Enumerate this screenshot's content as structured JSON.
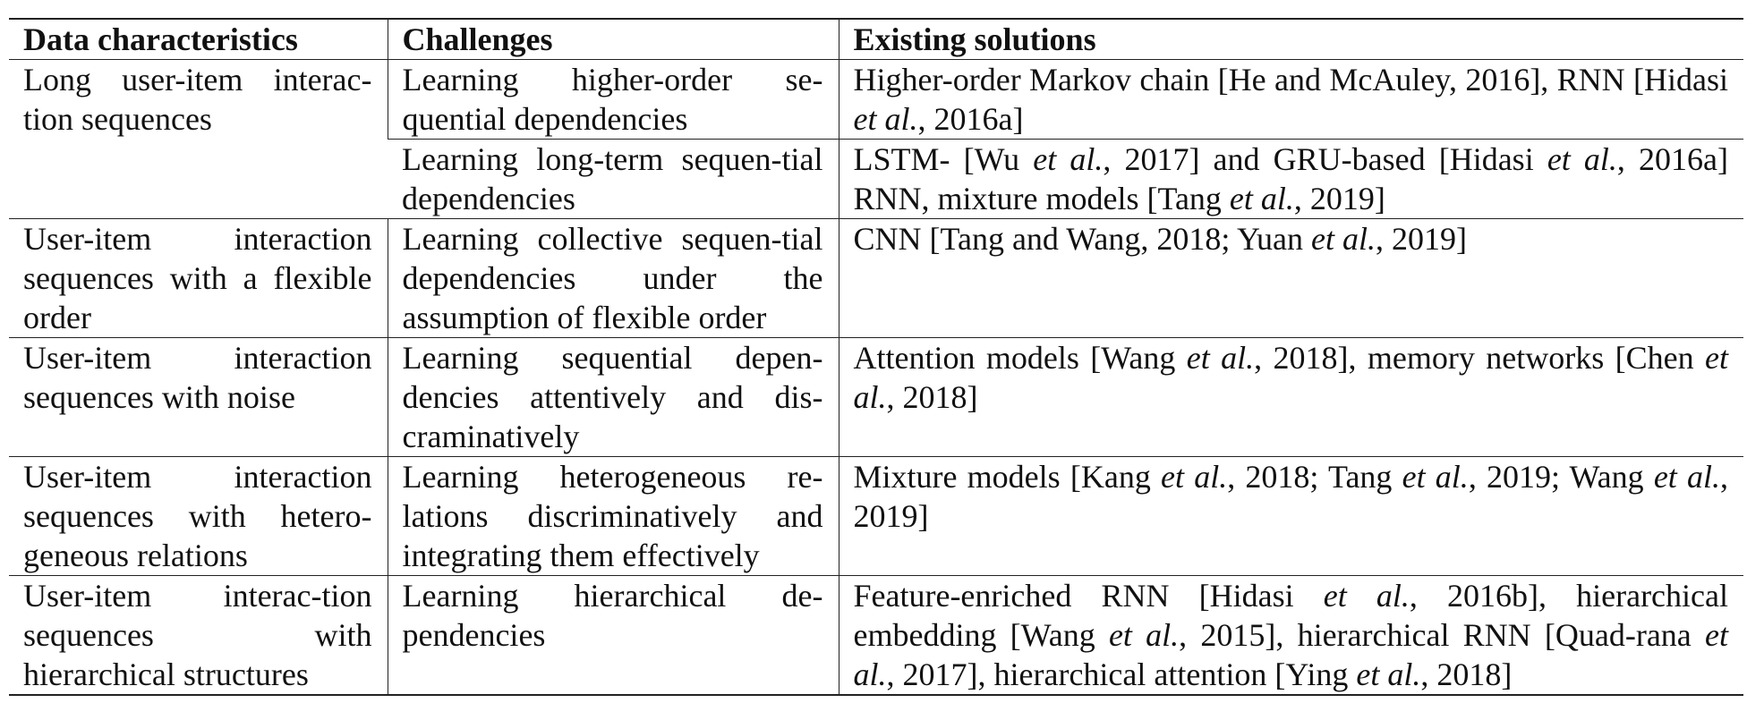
{
  "headers": {
    "col1": "Data characteristics",
    "col2": "Challenges",
    "col3": "Existing solutions"
  },
  "rows": [
    {
      "characteristic": "Long user-item interac-tion sequences",
      "challenges": [
        {
          "challenge": "Learning higher-order se-quential dependencies",
          "solutions": "Higher-order Markov chain [He and McAuley, 2016], RNN [Hidasi et al., 2016a]"
        },
        {
          "challenge": "Learning long-term sequen-tial dependencies",
          "solutions": "LSTM- [Wu et al., 2017] and GRU-based [Hidasi et al., 2016a] RNN, mixture models [Tang et al., 2019]"
        }
      ]
    },
    {
      "characteristic": "User-item interaction sequences with a flexible order",
      "challenges": [
        {
          "challenge": "Learning collective sequen-tial dependencies under the assumption of flexible order",
          "solutions": "CNN [Tang and Wang, 2018; Yuan et al., 2019]"
        }
      ]
    },
    {
      "characteristic": "User-item interaction sequences with noise",
      "challenges": [
        {
          "challenge": "Learning sequential depen-dencies attentively and dis-craminatively",
          "solutions": "Attention models [Wang et al., 2018], memory networks [Chen et al., 2018]"
        }
      ]
    },
    {
      "characteristic": "User-item interaction sequences with hetero-geneous relations",
      "challenges": [
        {
          "challenge": "Learning heterogeneous re-lations discriminatively and integrating them effectively",
          "solutions": "Mixture models [Kang et al., 2018; Tang et al., 2019; Wang et al., 2019]"
        }
      ]
    },
    {
      "characteristic": "User-item interac-tion sequences with hierarchical structures",
      "challenges": [
        {
          "challenge": "Learning hierarchical de-pendencies",
          "solutions": "Feature-enriched RNN [Hidasi et al., 2016b], hierarchical embedding [Wang et al., 2015], hierarchical RNN [Quad-rana et al., 2017], hierarchical attention [Ying et al., 2018]"
        }
      ]
    }
  ]
}
